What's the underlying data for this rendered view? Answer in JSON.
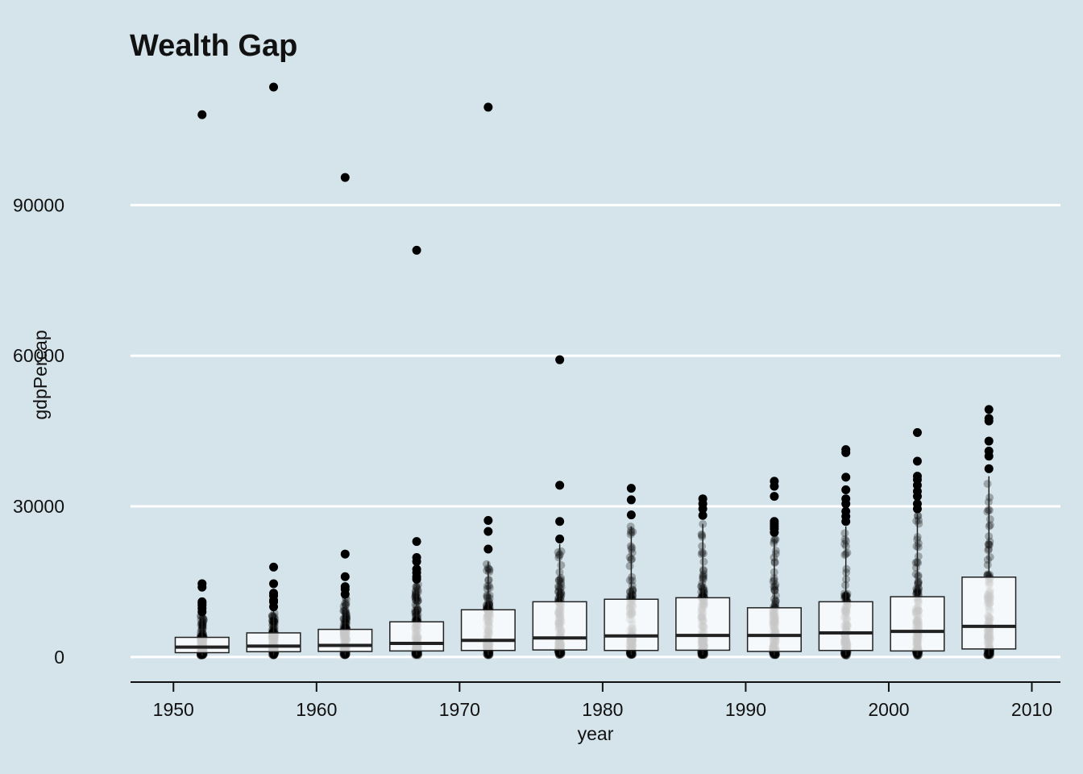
{
  "chart_data": {
    "type": "boxplot",
    "title": "Wealth Gap",
    "xlabel": "year",
    "ylabel": "gdpPercap",
    "xlim": [
      1947,
      2012
    ],
    "ylim": [
      -5000,
      118000
    ],
    "x_ticks": [
      1950,
      1960,
      1970,
      1980,
      1990,
      2000,
      2010
    ],
    "y_ticks": [
      0,
      30000,
      60000,
      90000
    ],
    "grid": "horizontal-major",
    "colors": {
      "background": "#d5e4eb",
      "grid": "#ffffff",
      "box_fill": "#ffffff",
      "box_line": "#222222",
      "points": "#000000"
    },
    "boxes": [
      {
        "x": 1952,
        "q1": 860,
        "median": 1970,
        "q3": 3910,
        "whisker_low": 300,
        "whisker_high": 8500,
        "outliers": [
          9000,
          9700,
          10300,
          10700,
          11000,
          13900,
          14600,
          108000
        ]
      },
      {
        "x": 1957,
        "q1": 1050,
        "median": 2170,
        "q3": 4800,
        "whisker_low": 330,
        "whisker_high": 9500,
        "outliers": [
          10000,
          10950,
          11300,
          12200,
          12700,
          14600,
          17900,
          113500
        ]
      },
      {
        "x": 1962,
        "q1": 1100,
        "median": 2300,
        "q3": 5500,
        "whisker_low": 350,
        "whisker_high": 12000,
        "outliers": [
          12500,
          13500,
          14000,
          16000,
          20500,
          95500
        ]
      },
      {
        "x": 1967,
        "q1": 1200,
        "median": 2700,
        "q3": 7000,
        "whisker_low": 350,
        "whisker_high": 15000,
        "outliers": [
          15500,
          16000,
          16800,
          17500,
          19000,
          19800,
          23000,
          81000
        ]
      },
      {
        "x": 1972,
        "q1": 1300,
        "median": 3300,
        "q3": 9400,
        "whisker_low": 340,
        "whisker_high": 19000,
        "outliers": [
          21500,
          25000,
          27200,
          109500
        ]
      },
      {
        "x": 1977,
        "q1": 1400,
        "median": 3800,
        "q3": 11000,
        "whisker_low": 400,
        "whisker_high": 22500,
        "outliers": [
          23500,
          27000,
          34200,
          59200
        ]
      },
      {
        "x": 1982,
        "q1": 1300,
        "median": 4200,
        "q3": 11500,
        "whisker_low": 400,
        "whisker_high": 26000,
        "outliers": [
          28300,
          31300,
          33600
        ]
      },
      {
        "x": 1987,
        "q1": 1350,
        "median": 4300,
        "q3": 11800,
        "whisker_low": 380,
        "whisker_high": 26500,
        "outliers": [
          28200,
          29500,
          30500,
          31500
        ]
      },
      {
        "x": 1992,
        "q1": 1100,
        "median": 4300,
        "q3": 9800,
        "whisker_low": 350,
        "whisker_high": 23500,
        "outliers": [
          24800,
          25500,
          26000,
          26500,
          27000,
          32000,
          34000,
          35000
        ]
      },
      {
        "x": 1997,
        "q1": 1300,
        "median": 4800,
        "q3": 11000,
        "whisker_low": 310,
        "whisker_high": 26000,
        "outliers": [
          27000,
          28000,
          29000,
          30500,
          31500,
          33300,
          35800,
          40700,
          41300
        ]
      },
      {
        "x": 2002,
        "q1": 1200,
        "median": 5100,
        "q3": 12000,
        "whisker_low": 240,
        "whisker_high": 28500,
        "outliers": [
          29500,
          30500,
          32000,
          33000,
          34200,
          35300,
          36000,
          39000,
          44700
        ]
      },
      {
        "x": 2007,
        "q1": 1600,
        "median": 6100,
        "q3": 15900,
        "whisker_low": 280,
        "whisker_high": 36000,
        "outliers": [
          37500,
          40000,
          41000,
          43000,
          47000,
          47500,
          49300
        ]
      }
    ]
  }
}
